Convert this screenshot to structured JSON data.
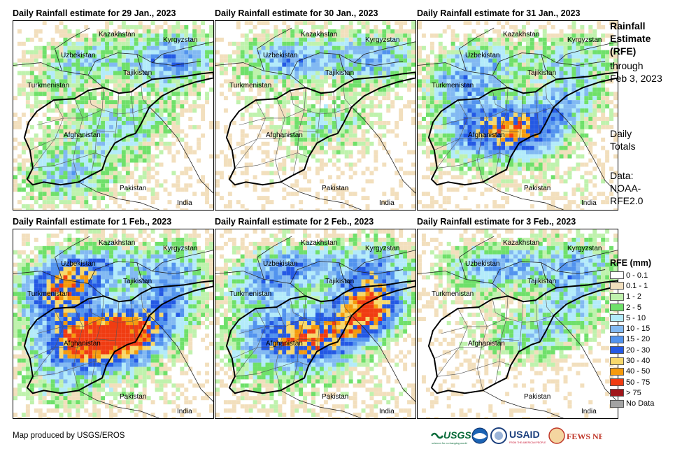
{
  "panels": [
    {
      "title": "Daily Rainfall estimate for 29 Jan., 2023",
      "wet": [
        0.2,
        0.35,
        0.55,
        0.15,
        0.35,
        0.1,
        0.4,
        0.05,
        0.02
      ]
    },
    {
      "title": "Daily Rainfall estimate for 30 Jan., 2023",
      "wet": [
        0.1,
        0.5,
        0.45,
        0.05,
        0.3,
        0.05,
        0.05,
        0.0,
        0.0
      ]
    },
    {
      "title": "Daily Rainfall estimate for 31 Jan., 2023",
      "wet": [
        0.45,
        0.3,
        0.3,
        0.55,
        0.55,
        0.35,
        0.05,
        0.1,
        0.05
      ]
    },
    {
      "title": "Daily Rainfall estimate for 1 Feb., 2023",
      "wet": [
        0.7,
        0.5,
        0.4,
        0.75,
        0.75,
        0.45,
        0.25,
        0.1,
        0.0
      ]
    },
    {
      "title": "Daily Rainfall estimate for 2 Feb., 2023",
      "wet": [
        0.35,
        0.5,
        0.45,
        0.6,
        0.55,
        0.85,
        0.15,
        0.1,
        0.05
      ]
    },
    {
      "title": "Daily Rainfall estimate for 3 Feb., 2023",
      "wet": [
        0.05,
        0.5,
        0.45,
        0.05,
        0.35,
        0.3,
        0.0,
        0.0,
        0.0
      ]
    }
  ],
  "map_labels": {
    "kazakhstan": "Kazakhstan",
    "kyrgyzstan": "Kyrgyzstan",
    "uzbekistan": "Uzbekistan",
    "tajikistan": "Tajikistan",
    "turkmenistan": "Turkmenistan",
    "afghanistan": "Afghanistan",
    "pakistan": "Pakistan",
    "india": "India"
  },
  "side": {
    "title_line1": "Rainfall",
    "title_line2": "Estimate",
    "title_line3": "(RFE)",
    "through_line1": "through",
    "through_line2": "Feb 3, 2023",
    "daily_line1": "Daily",
    "daily_line2": "Totals",
    "data_line1": "Data:",
    "data_line2": "NOAA-",
    "data_line3": "RFE2.0"
  },
  "legend": {
    "title": "RFE (mm)",
    "items": [
      {
        "label": "0 - 0.1",
        "color": "#ffffff"
      },
      {
        "label": "0.1 - 1",
        "color": "#f2dfbd"
      },
      {
        "label": "1 - 2",
        "color": "#bff2ad"
      },
      {
        "label": "2 - 5",
        "color": "#6fe06a"
      },
      {
        "label": "5 - 10",
        "color": "#b3ebfa"
      },
      {
        "label": "10 - 15",
        "color": "#82b9f2"
      },
      {
        "label": "15 - 20",
        "color": "#5293ee"
      },
      {
        "label": "20 - 30",
        "color": "#2459e4"
      },
      {
        "label": "30 - 40",
        "color": "#f7d86a"
      },
      {
        "label": "40 - 50",
        "color": "#f59a0d"
      },
      {
        "label": "50 - 75",
        "color": "#f03c12"
      },
      {
        "label": "> 75",
        "color": "#a0161a"
      },
      {
        "label": "No Data",
        "color": "#a3a3a3"
      }
    ]
  },
  "credit": "Map produced by USGS/EROS",
  "logos": {
    "usgs": "USGS",
    "usgs_tag": "science for a changing world",
    "usaid": "USAID",
    "usaid_tag": "FROM THE AMERICAN PEOPLE",
    "fewsnet": "FEWS NET"
  }
}
